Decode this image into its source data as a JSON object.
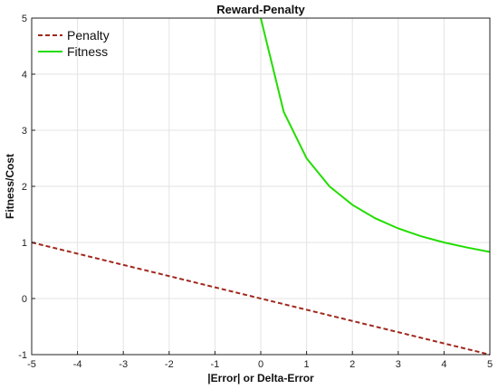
{
  "chart_data": {
    "type": "line",
    "title": "Reward-Penalty",
    "xlabel": "|Error| or Delta-Error",
    "ylabel": "Fitness/Cost",
    "xlim": [
      -5,
      5
    ],
    "ylim": [
      -1,
      5
    ],
    "xticks": [
      -5,
      -4,
      -3,
      -2,
      -1,
      0,
      1,
      2,
      3,
      4,
      5
    ],
    "yticks": [
      -1,
      0,
      1,
      2,
      3,
      4,
      5
    ],
    "grid": true,
    "legend_position": "top-left",
    "series": [
      {
        "name": "Penalty",
        "style": "dashed",
        "color": "#a0281e",
        "x": [
          -5,
          5
        ],
        "y": [
          1,
          -1
        ]
      },
      {
        "name": "Fitness",
        "style": "solid",
        "color": "#22dd00",
        "x": [
          0,
          0.5,
          1,
          1.5,
          2,
          2.5,
          3,
          3.5,
          4,
          4.5,
          5
        ],
        "y": [
          5,
          3.33,
          2.5,
          2.0,
          1.67,
          1.43,
          1.25,
          1.11,
          1.0,
          0.91,
          0.83
        ]
      }
    ]
  }
}
